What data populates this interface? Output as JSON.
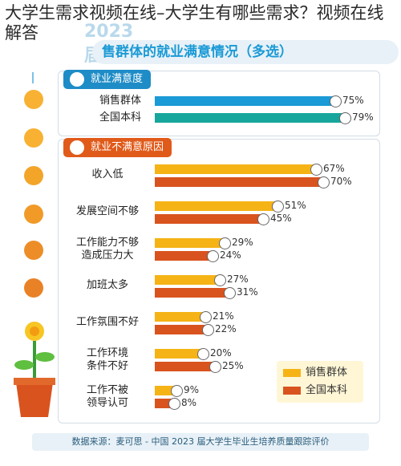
{
  "page_title": "大学生需求视频在线–大学生有哪些需求？视频在线解答",
  "chart_header": {
    "year_watermark": "2023 届本科生",
    "heading": "售群体的就业满意情况（多选）"
  },
  "source_note": "数据来源：麦可思 - 中国 2023 届大学生毕业生培养质量跟踪评价",
  "colors": {
    "sales": "#1a9ad6",
    "national_satisfied": "#17a69b",
    "unsat_sales": "#f5b316",
    "unsat_national": "#d9531e",
    "header_blue": "#1e8cc6",
    "header_orange": "#e05a1a"
  },
  "chart_data": [
    {
      "type": "bar",
      "title": "就业满意度",
      "categories": [
        "销售群体",
        "全国本科"
      ],
      "values": [
        75,
        79
      ],
      "value_labels": [
        "75%",
        "79%"
      ]
    },
    {
      "type": "bar",
      "title": "就业不满意原因",
      "categories": [
        "收入低",
        "发展空间不够",
        "工作能力不够造成压力大",
        "加班太多",
        "工作氛围不好",
        "工作环境条件不好",
        "工作不被领导认可"
      ],
      "category_lines": [
        [
          "收入低"
        ],
        [
          "发展空间不够"
        ],
        [
          "工作能力不够",
          "造成压力大"
        ],
        [
          "加班太多"
        ],
        [
          "工作氛围不好"
        ],
        [
          "工作环境",
          "条件不好"
        ],
        [
          "工作不被",
          "领导认可"
        ]
      ],
      "series": [
        {
          "name": "销售群体",
          "values": [
            67,
            51,
            29,
            27,
            21,
            20,
            9
          ],
          "labels": [
            "67%",
            "51%",
            "29%",
            "27%",
            "21%",
            "20%",
            "9%"
          ]
        },
        {
          "name": "全国本科",
          "values": [
            70,
            45,
            24,
            31,
            22,
            25,
            8
          ],
          "labels": [
            "70%",
            "45%",
            "24%",
            "31%",
            "22%",
            "25%",
            "8%"
          ]
        }
      ],
      "legend_position": "bottom-right"
    }
  ]
}
